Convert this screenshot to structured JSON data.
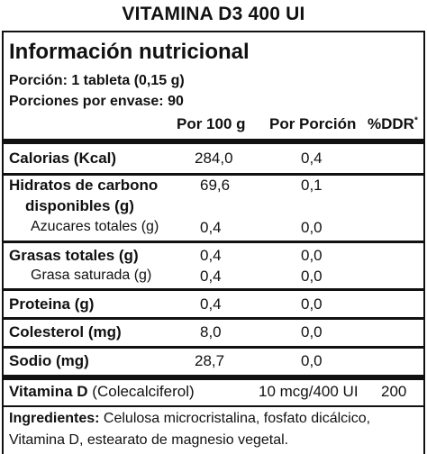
{
  "title": "VITAMINA D3 400 UI",
  "heading": "Información nutricional",
  "portion": "Porción: 1 tableta (0,15 g)",
  "portions_per_pack": "Porciones por envase: 90",
  "columns": {
    "per100": "Por 100 g",
    "perPortion": "Por Porción",
    "ddr": "%DDR",
    "ddr_mark": "*"
  },
  "rows": [
    {
      "label": "Calorias (Kcal)",
      "per100": "284,0",
      "perPortion": "0,4"
    },
    {
      "label_line1": "Hidratos de carbono",
      "label_line2": "disponibles (g)",
      "per100": "69,6",
      "perPortion": "0,1"
    },
    {
      "label": "Azucares totales (g)",
      "per100": "0,4",
      "perPortion": "0,0"
    },
    {
      "label": "Grasas totales (g)",
      "per100": "0,4",
      "perPortion": "0,0"
    },
    {
      "label": "Grasa saturada (g)",
      "per100": "0,4",
      "perPortion": "0,0"
    },
    {
      "label": "Proteina (g)",
      "per100": "0,4",
      "perPortion": "0,0"
    },
    {
      "label": "Colesterol (mg)",
      "per100": "8,0",
      "perPortion": "0,0"
    },
    {
      "label": "Sodio (mg)",
      "per100": "28,7",
      "perPortion": "0,0"
    }
  ],
  "vitamin": {
    "name": "Vitamina D",
    "detail": "(Colecalciferol)",
    "amount": "10 mcg/400 UI",
    "ddr": "200"
  },
  "ingredients": {
    "label": "Ingredientes:",
    "line1": "Celulosa microcristalina, fosfato dicálcico,",
    "line2": "Vitamina D, estearato de magnesio vegetal."
  }
}
